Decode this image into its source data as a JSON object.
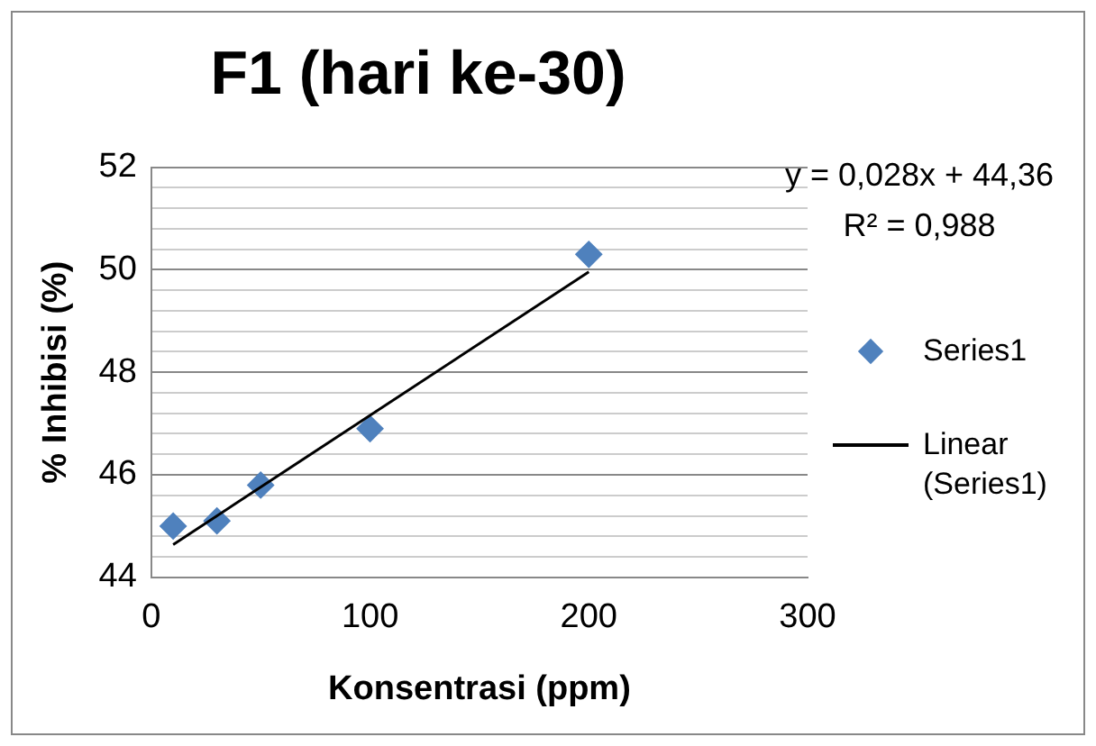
{
  "chart_data": {
    "type": "scatter",
    "title": "F1 (hari ke-30)",
    "xlabel": "Konsentrasi (ppm)",
    "ylabel": "% Inhibisi (%)",
    "annotations": [
      "y = 0,028x + 44,36",
      "R² = 0,988"
    ],
    "x": [
      10,
      30,
      50,
      100,
      200
    ],
    "series": [
      {
        "name": "Series1",
        "color": "#4f81bd",
        "values": [
          45.0,
          45.1,
          45.8,
          46.9,
          50.3
        ],
        "marker": "diamond"
      },
      {
        "name": "Linear (Series1)",
        "type": "line",
        "color": "#000000",
        "x": [
          10,
          200
        ],
        "values": [
          44.64,
          49.96
        ],
        "marker": "none"
      }
    ],
    "xlim": [
      0,
      300
    ],
    "xticks": [
      0,
      100,
      200,
      300
    ],
    "ylim": [
      44,
      52
    ],
    "yticks": [
      44,
      {
        "value": 44.4,
        "label": null
      },
      {
        "value": 44.8,
        "label": null
      },
      {
        "value": 45.2,
        "label": null
      },
      {
        "value": 45.6,
        "label": null
      },
      46,
      {
        "value": 46.4,
        "label": null
      },
      {
        "value": 46.8,
        "label": null
      },
      {
        "value": 47.2,
        "label": null
      },
      {
        "value": 47.6,
        "label": null
      },
      48,
      {
        "value": 48.4,
        "label": null
      },
      {
        "value": 48.8,
        "label": null
      },
      {
        "value": 49.2,
        "label": null
      },
      {
        "value": 49.6,
        "label": null
      },
      50,
      {
        "value": 50.4,
        "label": null
      },
      {
        "value": 50.8,
        "label": null
      },
      {
        "value": 51.2,
        "label": null
      },
      {
        "value": 51.6,
        "label": null
      },
      52
    ],
    "grid": "y",
    "legend": "right"
  }
}
